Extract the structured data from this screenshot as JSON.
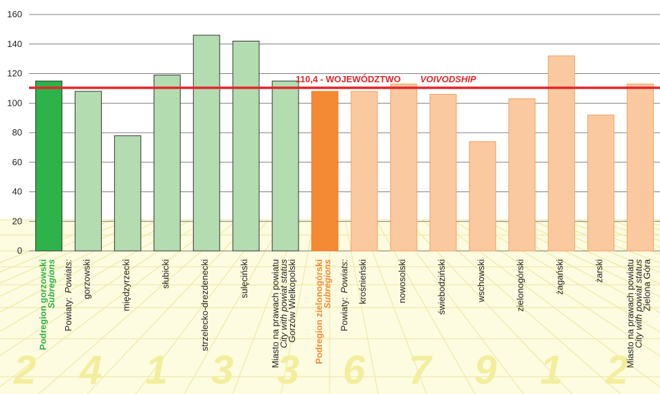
{
  "chart_data": {
    "type": "bar",
    "categories": [
      {
        "lines": [
          "Podregion gorzowski",
          "Subregions"
        ],
        "italic": [
          false,
          true
        ]
      },
      {
        "lines": [
          "gorzowski"
        ],
        "italic": [
          false
        ]
      },
      {
        "lines": [
          "międzyrzecki"
        ],
        "italic": [
          false
        ]
      },
      {
        "lines": [
          "słubicki"
        ],
        "italic": [
          false
        ]
      },
      {
        "lines": [
          "strzelecko-drezdenecki"
        ],
        "italic": [
          false
        ]
      },
      {
        "lines": [
          "sulęciński"
        ],
        "italic": [
          false
        ]
      },
      {
        "lines": [
          "Miasto na prawach powiatu",
          "City with powiat status",
          "Gorzów Wielkopolski"
        ],
        "italic": [
          false,
          true,
          false
        ]
      },
      {
        "lines": [
          "Podregion zielonogórski",
          "Subregions"
        ],
        "italic": [
          false,
          true
        ]
      },
      {
        "lines": [
          "krośnieński"
        ],
        "italic": [
          false
        ]
      },
      {
        "lines": [
          "nowosolski"
        ],
        "italic": [
          false
        ]
      },
      {
        "lines": [
          "świebodziński"
        ],
        "italic": [
          false
        ]
      },
      {
        "lines": [
          "wschowski"
        ],
        "italic": [
          false
        ]
      },
      {
        "lines": [
          "zielonogórski"
        ],
        "italic": [
          false
        ]
      },
      {
        "lines": [
          "żagański"
        ],
        "italic": [
          false
        ]
      },
      {
        "lines": [
          "żarski"
        ],
        "italic": [
          false
        ]
      },
      {
        "lines": [
          "Miasto na prawach powiatu",
          "City with powiat status",
          "Zielona Góra"
        ],
        "italic": [
          false,
          true,
          false
        ]
      }
    ],
    "values": [
      115,
      108,
      78,
      119,
      146,
      142,
      115,
      108,
      108,
      113,
      106,
      74,
      103,
      132,
      92,
      113
    ],
    "colors": [
      "#2db34a",
      "#b3dcb1",
      "#b3dcb1",
      "#b3dcb1",
      "#b3dcb1",
      "#b3dcb1",
      "#b3dcb1",
      "#f58a35",
      "#fbc9a0",
      "#fbc9a0",
      "#fbc9a0",
      "#fbc9a0",
      "#fbc9a0",
      "#fbc9a0",
      "#fbc9a0",
      "#fbc9a0"
    ],
    "label_colors": [
      "#2db34a",
      "#222222",
      "#222222",
      "#222222",
      "#222222",
      "#222222",
      "#222222",
      "#f58a35",
      "#222222",
      "#222222",
      "#222222",
      "#222222",
      "#222222",
      "#222222",
      "#222222",
      "#222222"
    ],
    "group_labels": [
      {
        "after_category": 0,
        "text": "Powiaty:",
        "text_en": "Powiats:"
      },
      {
        "after_category": 7,
        "text": "Powiaty:",
        "text_en": "Powiats:"
      }
    ],
    "reference": {
      "value": 110.4,
      "label": "110,4 - WOJEWÓDZTWO",
      "label_en": "VOIVODSHIP",
      "color": "#e3262b"
    },
    "background_digits": [
      "2",
      "4",
      "1",
      "3",
      "3",
      "6",
      "7",
      "9",
      "1",
      "2"
    ],
    "ylim": [
      0,
      160
    ],
    "yticks": [
      0,
      20,
      40,
      60,
      80,
      100,
      120,
      140,
      160
    ],
    "grid": true
  }
}
